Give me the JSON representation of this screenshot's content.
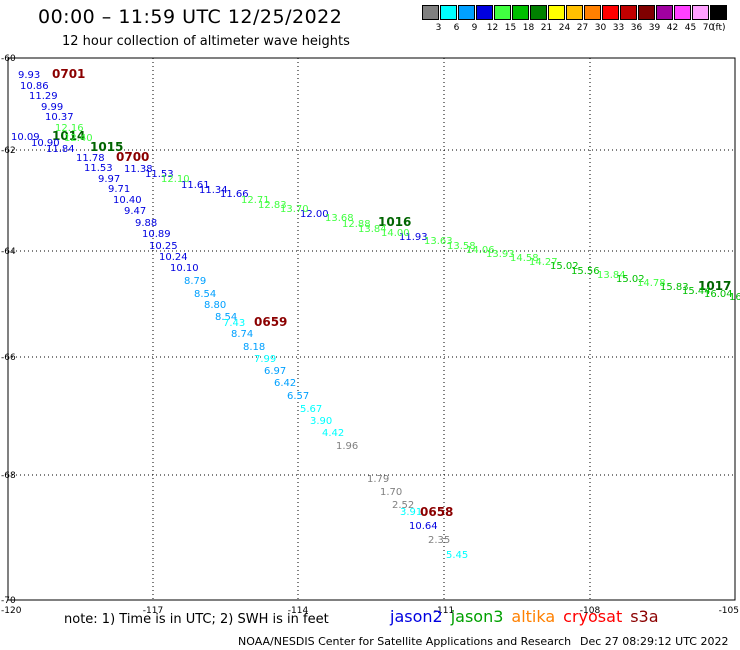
{
  "header": {
    "title": "00:00 – 11:59 UTC 12/25/2022",
    "subtitle": "12 hour collection of altimeter wave heights"
  },
  "legend": {
    "unit": "(ft)",
    "bins": [
      {
        "color": "#808080",
        "label": "3"
      },
      {
        "color": "#00ffff",
        "label": "6"
      },
      {
        "color": "#00a0ff",
        "label": "9"
      },
      {
        "color": "#0000e0",
        "label": "12"
      },
      {
        "color": "#40ff40",
        "label": "15"
      },
      {
        "color": "#00c000",
        "label": "18"
      },
      {
        "color": "#008000",
        "label": "21"
      },
      {
        "color": "#ffff00",
        "label": "24"
      },
      {
        "color": "#ffc000",
        "label": "27"
      },
      {
        "color": "#ff8000",
        "label": "30"
      },
      {
        "color": "#ff0000",
        "label": "33"
      },
      {
        "color": "#c00000",
        "label": "36"
      },
      {
        "color": "#800000",
        "label": "39"
      },
      {
        "color": "#a000a0",
        "label": "42"
      },
      {
        "color": "#ff40ff",
        "label": "45"
      },
      {
        "color": "#ffa0ff",
        "label": "70"
      },
      {
        "color": "#000000",
        "label": ""
      }
    ]
  },
  "map": {
    "lon_range": [
      -120,
      -105
    ],
    "lat_range": [
      -70,
      -60
    ],
    "lon_ticks": [
      "-120",
      "-117",
      "-114",
      "-111",
      "-108",
      "-105"
    ],
    "lat_ticks": [
      "-60",
      "-62",
      "-64",
      "-66",
      "-68",
      "-70"
    ],
    "grid": true,
    "time_labels": [
      {
        "text": "0701",
        "color": "#8b0000"
      },
      {
        "text": "1014",
        "color": "#006400"
      },
      {
        "text": "1015",
        "color": "#006400"
      },
      {
        "text": "0700",
        "color": "#8b0000"
      },
      {
        "text": "1016",
        "color": "#006400"
      },
      {
        "text": "0659",
        "color": "#8b0000"
      },
      {
        "text": "1017",
        "color": "#006400"
      },
      {
        "text": "0658",
        "color": "#8b0000"
      }
    ],
    "readings": [
      {
        "text": "9.93",
        "color": "#0000e0"
      },
      {
        "text": "10.86",
        "color": "#0000e0"
      },
      {
        "text": "11.29",
        "color": "#0000e0"
      },
      {
        "text": "9.99",
        "color": "#0000e0"
      },
      {
        "text": "10.37",
        "color": "#0000e0"
      },
      {
        "text": "10.09",
        "color": "#0000e0"
      },
      {
        "text": "10.90",
        "color": "#0000e0"
      },
      {
        "text": "11.84",
        "color": "#0000e0"
      },
      {
        "text": "11.78",
        "color": "#0000e0"
      },
      {
        "text": "11.53",
        "color": "#0000e0"
      },
      {
        "text": "11.38",
        "color": "#0000e0"
      },
      {
        "text": "9.97",
        "color": "#0000e0"
      },
      {
        "text": "11.53",
        "color": "#0000e0"
      },
      {
        "text": "9.71",
        "color": "#0000e0"
      },
      {
        "text": "10.40",
        "color": "#0000e0"
      },
      {
        "text": "9.47",
        "color": "#0000e0"
      },
      {
        "text": "9.88",
        "color": "#0000e0"
      },
      {
        "text": "10.89",
        "color": "#0000e0"
      },
      {
        "text": "10.25",
        "color": "#0000e0"
      },
      {
        "text": "10.24",
        "color": "#0000e0"
      },
      {
        "text": "10.10",
        "color": "#0000e0"
      },
      {
        "text": "11.61",
        "color": "#0000e0"
      },
      {
        "text": "11.34",
        "color": "#0000e0"
      },
      {
        "text": "11.66",
        "color": "#0000e0"
      },
      {
        "text": "12.00",
        "color": "#0000e0"
      },
      {
        "text": "11.93",
        "color": "#0000e0"
      },
      {
        "text": "10.64",
        "color": "#0000e0"
      },
      {
        "text": "12.16",
        "color": "#40ff40"
      },
      {
        "text": "12.40",
        "color": "#40ff40"
      },
      {
        "text": "12.10",
        "color": "#40ff40"
      },
      {
        "text": "12.71",
        "color": "#40ff40"
      },
      {
        "text": "12.83",
        "color": "#40ff40"
      },
      {
        "text": "13.70",
        "color": "#40ff40"
      },
      {
        "text": "13.68",
        "color": "#40ff40"
      },
      {
        "text": "12.88",
        "color": "#40ff40"
      },
      {
        "text": "13.84",
        "color": "#40ff40"
      },
      {
        "text": "14.00",
        "color": "#40ff40"
      },
      {
        "text": "13.63",
        "color": "#40ff40"
      },
      {
        "text": "13.58",
        "color": "#40ff40"
      },
      {
        "text": "14.06",
        "color": "#40ff40"
      },
      {
        "text": "13.93",
        "color": "#40ff40"
      },
      {
        "text": "14.58",
        "color": "#40ff40"
      },
      {
        "text": "14.27",
        "color": "#40ff40"
      },
      {
        "text": "15.02",
        "color": "#00c000"
      },
      {
        "text": "15.56",
        "color": "#00c000"
      },
      {
        "text": "13.84",
        "color": "#40ff40"
      },
      {
        "text": "15.02",
        "color": "#00c000"
      },
      {
        "text": "14.78",
        "color": "#40ff40"
      },
      {
        "text": "15.83",
        "color": "#00c000"
      },
      {
        "text": "15.44",
        "color": "#00c000"
      },
      {
        "text": "16.04",
        "color": "#00c000"
      },
      {
        "text": "16",
        "color": "#00c000"
      },
      {
        "text": "8.79",
        "color": "#00a0ff"
      },
      {
        "text": "8.54",
        "color": "#00a0ff"
      },
      {
        "text": "8.80",
        "color": "#00a0ff"
      },
      {
        "text": "8.54",
        "color": "#00a0ff"
      },
      {
        "text": "7.43",
        "color": "#00ffff"
      },
      {
        "text": "8.74",
        "color": "#00a0ff"
      },
      {
        "text": "8.18",
        "color": "#00a0ff"
      },
      {
        "text": "7.99",
        "color": "#00ffff"
      },
      {
        "text": "6.97",
        "color": "#00a0ff"
      },
      {
        "text": "6.42",
        "color": "#00a0ff"
      },
      {
        "text": "6.57",
        "color": "#00a0ff"
      },
      {
        "text": "5.67",
        "color": "#00ffff"
      },
      {
        "text": "3.90",
        "color": "#00ffff"
      },
      {
        "text": "4.42",
        "color": "#00ffff"
      },
      {
        "text": "1.96",
        "color": "#808080"
      },
      {
        "text": "1.79",
        "color": "#808080"
      },
      {
        "text": "1.70",
        "color": "#808080"
      },
      {
        "text": "2.52",
        "color": "#808080"
      },
      {
        "text": "3.91",
        "color": "#00ffff"
      },
      {
        "text": "2.35",
        "color": "#808080"
      },
      {
        "text": "5.45",
        "color": "#00ffff"
      }
    ]
  },
  "footer": {
    "note": "note:  1) Time is in UTC;  2) SWH is in feet",
    "satellites": [
      {
        "name": "jason2",
        "color": "#0000e0"
      },
      {
        "name": "jason3",
        "color": "#00a000"
      },
      {
        "name": "altika",
        "color": "#ff8000"
      },
      {
        "name": "cryosat",
        "color": "#ff0000"
      },
      {
        "name": "s3a",
        "color": "#8b0000"
      }
    ],
    "credit": "NOAA/NESDIS Center for Satellite Applications and Research",
    "timestamp": "Dec 27 08:29:12 UTC 2022"
  }
}
